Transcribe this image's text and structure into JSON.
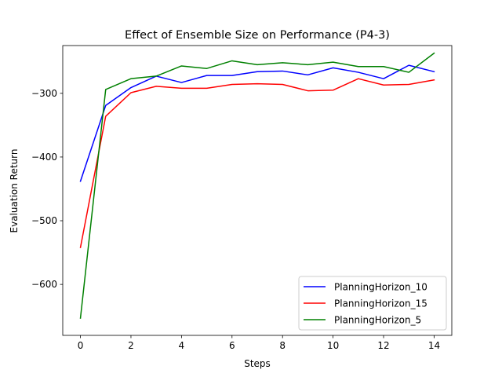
{
  "chart_data": {
    "type": "line",
    "title": "Effect of Ensemble Size on Performance (P4-3)",
    "xlabel": "Steps",
    "ylabel": "Evaluation Return",
    "xlim": [
      -0.7,
      14.7
    ],
    "ylim": [
      -680,
      -225
    ],
    "xticks": [
      0,
      2,
      4,
      6,
      8,
      10,
      12,
      14
    ],
    "yticks": [
      -600,
      -500,
      -400,
      -300
    ],
    "ytick_labels": [
      "−600",
      "−500",
      "−400",
      "−300"
    ],
    "grid": false,
    "legend_position": "lower right",
    "x": [
      0,
      1,
      2,
      3,
      4,
      5,
      6,
      7,
      8,
      9,
      10,
      11,
      12,
      13,
      14
    ],
    "series": [
      {
        "name": "PlanningHorizon_10",
        "color": "#0000ff",
        "values": [
          -438,
          -319,
          -291,
          -273,
          -283,
          -272,
          -272,
          -266,
          -265,
          -271,
          -260,
          -267,
          -277,
          -256,
          -266
        ]
      },
      {
        "name": "PlanningHorizon_15",
        "color": "#ff0000",
        "values": [
          -542,
          -336,
          -299,
          -289,
          -292,
          -292,
          -286,
          -285,
          -286,
          -296,
          -295,
          -277,
          -287,
          -286,
          -279
        ]
      },
      {
        "name": "PlanningHorizon_5",
        "color": "#008000",
        "values": [
          -653,
          -294,
          -277,
          -273,
          -257,
          -261,
          -249,
          -255,
          -252,
          -255,
          -251,
          -258,
          -258,
          -267,
          -237
        ]
      }
    ]
  }
}
